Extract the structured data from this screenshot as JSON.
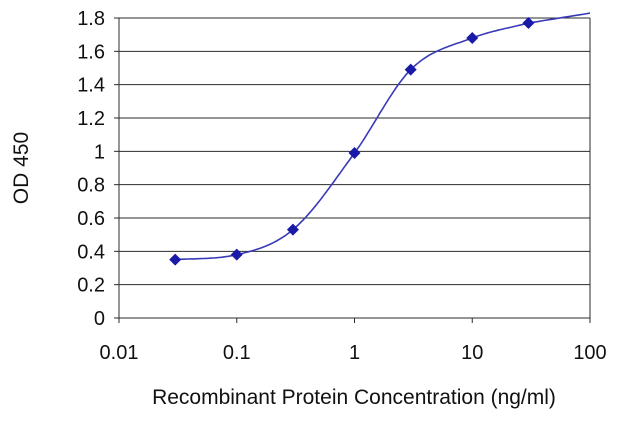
{
  "chart_data": {
    "type": "scatter",
    "title": "",
    "xlabel": "Recombinant Protein Concentration (ng/ml)",
    "ylabel": "OD 450",
    "x_scale": "log",
    "xlim": [
      0.01,
      100
    ],
    "ylim": [
      0,
      1.8
    ],
    "x_ticks": [
      0.01,
      0.1,
      1,
      10,
      100
    ],
    "x_tick_labels": [
      "0.01",
      "0.1",
      "1",
      "10",
      "100"
    ],
    "y_ticks": [
      0,
      0.2,
      0.4,
      0.6,
      0.8,
      1,
      1.2,
      1.4,
      1.6,
      1.8
    ],
    "y_tick_labels": [
      "0",
      "0.2",
      "0.4",
      "0.6",
      "0.8",
      "1",
      "1.2",
      "1.4",
      "1.6",
      "1.8"
    ],
    "grid": "horizontal",
    "legend": "none",
    "series": [
      {
        "x": [
          0.03,
          0.1,
          0.3,
          1,
          3,
          10,
          30
        ],
        "y": [
          0.35,
          0.38,
          0.53,
          0.99,
          1.49,
          1.68,
          1.77
        ],
        "color": "#1a1aa8",
        "fit_curve": true
      }
    ]
  }
}
